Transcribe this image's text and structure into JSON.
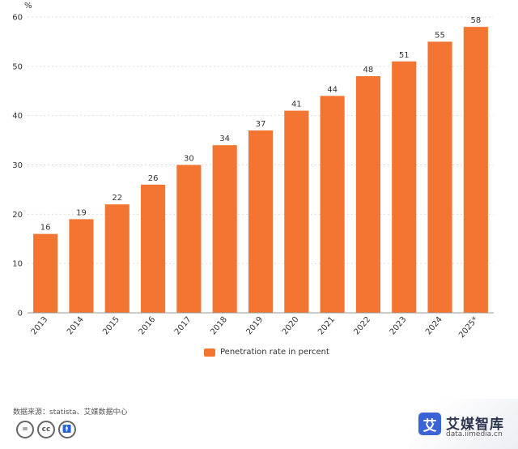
{
  "chart_data": {
    "type": "bar",
    "categories": [
      "2013",
      "2014",
      "2015",
      "2016",
      "2017",
      "2018",
      "2019",
      "2020",
      "2021",
      "2022",
      "2023",
      "2024",
      "2025*"
    ],
    "series": [
      {
        "name": "Penetration rate in percent",
        "values": [
          16,
          19,
          22,
          26,
          30,
          34,
          37,
          41,
          44,
          48,
          51,
          55,
          58
        ]
      }
    ],
    "ylabel": "%",
    "ylim": [
      0,
      60
    ],
    "yticks": [
      0,
      10,
      20,
      30,
      40,
      50,
      60
    ],
    "grid": true,
    "legend_position": "bottom-center",
    "bar_color": "#f47531"
  },
  "footer": {
    "source": "数据来源：statista、艾媒数据中心",
    "cc_icons": [
      "cc-equals-icon",
      "cc-icon",
      "cc-by-icon"
    ],
    "brand_name": "艾媒智库",
    "brand_url": "data.iimedia.cn",
    "brand_logo_char": "艾",
    "cc_text": "cc"
  }
}
